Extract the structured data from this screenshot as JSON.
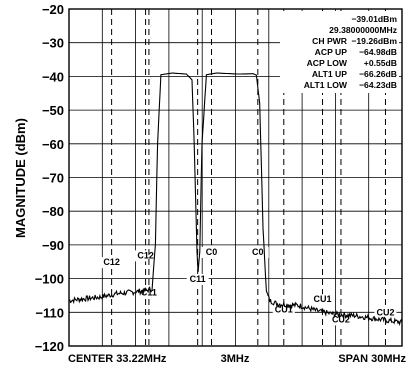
{
  "chart_data": {
    "type": "line",
    "ylabel": "MAGNITUDE (dBm)",
    "ylim": [
      -120,
      -20
    ],
    "yticks": [
      -20,
      -30,
      -40,
      -50,
      -60,
      -70,
      -80,
      -90,
      -100,
      -110,
      -120
    ],
    "grid": true,
    "xlim": [
      18.22,
      48.22
    ],
    "x_unit": "MHz",
    "x_bottom_labels": {
      "center": "CENTER 33.22MHz",
      "div": "3MHz",
      "span": "SPAN 30MHz"
    },
    "annotations": [
      {
        "label": "",
        "value": "-39.01dBm"
      },
      {
        "label": "",
        "value": "29.38000000MHz"
      },
      {
        "label": "CH PWR",
        "value": "-19.26dBm"
      },
      {
        "label": "ACP UP",
        "value": "-64.98dB"
      },
      {
        "label": "ACP LOW",
        "value": "+0.55dB"
      },
      {
        "label": "ALT1 UP",
        "value": "-66.26dB"
      },
      {
        "label": "ALT1 LOW",
        "value": "-64.23dB"
      }
    ],
    "channel_markers": [
      {
        "label": "C12",
        "x": 22.06,
        "y": -96
      },
      {
        "label": "C12",
        "x": 25.12,
        "y": -94
      },
      {
        "label": "C11",
        "x": 25.42,
        "y": -105
      },
      {
        "label": "C11",
        "x": 29.81,
        "y": -101
      },
      {
        "label": "C0",
        "x": 31.06,
        "y": -93
      },
      {
        "label": "C0",
        "x": 35.23,
        "y": -93
      },
      {
        "label": "CU1",
        "x": 37.57,
        "y": -110
      },
      {
        "label": "CU1",
        "x": 41.06,
        "y": -107
      },
      {
        "label": "CU2",
        "x": 42.72,
        "y": -113
      },
      {
        "label": "CU2",
        "x": 46.73,
        "y": -111
      }
    ],
    "series": [
      {
        "x": [
          18.22,
          19.5,
          21,
          22.5,
          24,
          25.2,
          25.7,
          26,
          26.2,
          26.5,
          27.5,
          28.8,
          29.3,
          29.5,
          29.75,
          29.85,
          30.0,
          30.2,
          30.6,
          31.5,
          33.5,
          34.8,
          35.1,
          35.4,
          35.7,
          36.0,
          36.3,
          37.0,
          39.0,
          40.5,
          42,
          44,
          46,
          48.22
        ],
        "y": [
          -106.5,
          -106,
          -105.5,
          -104.5,
          -104,
          -103.5,
          -103,
          -90,
          -60,
          -39.5,
          -39,
          -39.3,
          -41,
          -60,
          -92,
          -98,
          -92,
          -60,
          -39.5,
          -39,
          -39.3,
          -39.2,
          -39.6,
          -48,
          -85,
          -104,
          -106.5,
          -107.5,
          -108,
          -109.5,
          -110.5,
          -111,
          -112,
          -113
        ]
      }
    ]
  }
}
